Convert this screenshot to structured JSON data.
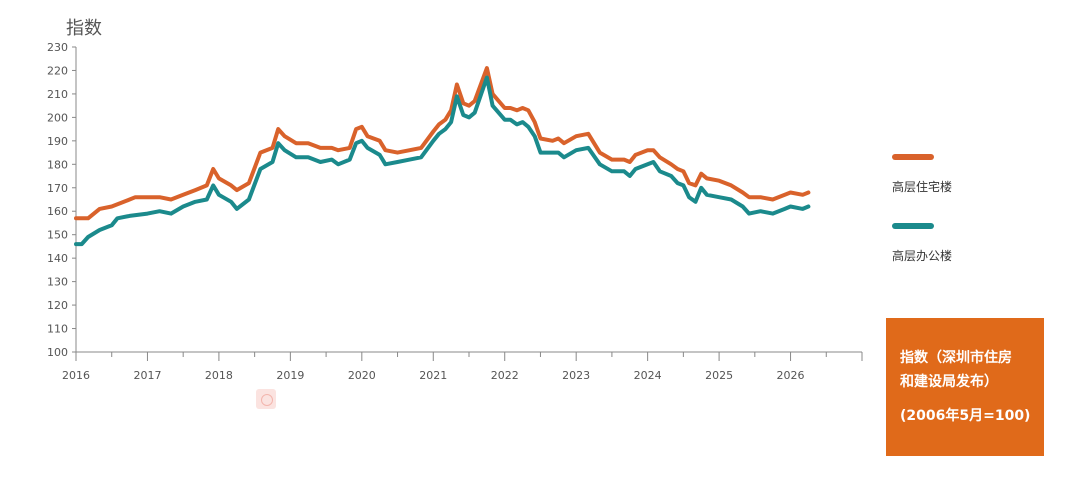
{
  "chart_data": {
    "type": "line",
    "ylabel": "指数",
    "ylim": [
      100,
      230
    ],
    "yticks": [
      100,
      110,
      120,
      130,
      140,
      150,
      160,
      170,
      180,
      190,
      200,
      210,
      220,
      230
    ],
    "xlim": [
      2016,
      2027
    ],
    "xticks": [
      "2016",
      "2017",
      "2018",
      "2019",
      "2020",
      "2021",
      "2022",
      "2023",
      "2024",
      "2025",
      "2026"
    ],
    "grid": false,
    "legend_position": "right",
    "series": [
      {
        "name": "高层住宅楼",
        "color": "#d9622b",
        "points": [
          [
            2016.0,
            157
          ],
          [
            2016.17,
            157
          ],
          [
            2016.33,
            161
          ],
          [
            2016.5,
            162
          ],
          [
            2016.67,
            164
          ],
          [
            2016.83,
            166
          ],
          [
            2017.0,
            166
          ],
          [
            2017.17,
            166
          ],
          [
            2017.33,
            165
          ],
          [
            2017.5,
            167
          ],
          [
            2017.67,
            169
          ],
          [
            2017.83,
            171
          ],
          [
            2017.92,
            178
          ],
          [
            2018.0,
            174
          ],
          [
            2018.17,
            171
          ],
          [
            2018.25,
            169
          ],
          [
            2018.42,
            172
          ],
          [
            2018.58,
            185
          ],
          [
            2018.75,
            187
          ],
          [
            2018.83,
            195
          ],
          [
            2018.92,
            192
          ],
          [
            2019.08,
            189
          ],
          [
            2019.25,
            189
          ],
          [
            2019.42,
            187
          ],
          [
            2019.58,
            187
          ],
          [
            2019.67,
            186
          ],
          [
            2019.83,
            187
          ],
          [
            2019.92,
            195
          ],
          [
            2020.0,
            196
          ],
          [
            2020.08,
            192
          ],
          [
            2020.25,
            190
          ],
          [
            2020.33,
            186
          ],
          [
            2020.5,
            185
          ],
          [
            2020.67,
            186
          ],
          [
            2020.83,
            187
          ],
          [
            2021.0,
            194
          ],
          [
            2021.08,
            197
          ],
          [
            2021.17,
            199
          ],
          [
            2021.25,
            203
          ],
          [
            2021.33,
            214
          ],
          [
            2021.42,
            206
          ],
          [
            2021.5,
            205
          ],
          [
            2021.58,
            207
          ],
          [
            2021.75,
            221
          ],
          [
            2021.83,
            210
          ],
          [
            2022.0,
            204
          ],
          [
            2022.08,
            204
          ],
          [
            2022.17,
            203
          ],
          [
            2022.25,
            204
          ],
          [
            2022.33,
            203
          ],
          [
            2022.42,
            198
          ],
          [
            2022.5,
            191
          ],
          [
            2022.67,
            190
          ],
          [
            2022.75,
            191
          ],
          [
            2022.83,
            189
          ],
          [
            2023.0,
            192
          ],
          [
            2023.17,
            193
          ],
          [
            2023.33,
            185
          ],
          [
            2023.5,
            182
          ],
          [
            2023.67,
            182
          ],
          [
            2023.75,
            181
          ],
          [
            2023.83,
            184
          ],
          [
            2024.0,
            186
          ],
          [
            2024.08,
            186
          ],
          [
            2024.17,
            183
          ],
          [
            2024.33,
            180
          ],
          [
            2024.42,
            178
          ],
          [
            2024.5,
            177
          ],
          [
            2024.58,
            172
          ],
          [
            2024.67,
            171
          ],
          [
            2024.75,
            176
          ],
          [
            2024.83,
            174
          ],
          [
            2025.0,
            173
          ],
          [
            2025.17,
            171
          ],
          [
            2025.33,
            168
          ],
          [
            2025.42,
            166
          ],
          [
            2025.58,
            166
          ],
          [
            2025.75,
            165
          ],
          [
            2025.92,
            167
          ],
          [
            2026.0,
            168
          ],
          [
            2026.17,
            167
          ],
          [
            2026.25,
            168
          ]
        ]
      },
      {
        "name": "高层办公楼",
        "color": "#1b8a8c",
        "points": [
          [
            2016.0,
            146
          ],
          [
            2016.08,
            146
          ],
          [
            2016.17,
            149
          ],
          [
            2016.33,
            152
          ],
          [
            2016.5,
            154
          ],
          [
            2016.58,
            157
          ],
          [
            2016.75,
            158
          ],
          [
            2017.0,
            159
          ],
          [
            2017.17,
            160
          ],
          [
            2017.33,
            159
          ],
          [
            2017.5,
            162
          ],
          [
            2017.67,
            164
          ],
          [
            2017.83,
            165
          ],
          [
            2017.92,
            171
          ],
          [
            2018.0,
            167
          ],
          [
            2018.17,
            164
          ],
          [
            2018.25,
            161
          ],
          [
            2018.42,
            165
          ],
          [
            2018.58,
            178
          ],
          [
            2018.75,
            181
          ],
          [
            2018.83,
            189
          ],
          [
            2018.92,
            186
          ],
          [
            2019.08,
            183
          ],
          [
            2019.25,
            183
          ],
          [
            2019.42,
            181
          ],
          [
            2019.58,
            182
          ],
          [
            2019.67,
            180
          ],
          [
            2019.83,
            182
          ],
          [
            2019.92,
            189
          ],
          [
            2020.0,
            190
          ],
          [
            2020.08,
            187
          ],
          [
            2020.25,
            184
          ],
          [
            2020.33,
            180
          ],
          [
            2020.5,
            181
          ],
          [
            2020.67,
            182
          ],
          [
            2020.83,
            183
          ],
          [
            2021.0,
            190
          ],
          [
            2021.08,
            193
          ],
          [
            2021.17,
            195
          ],
          [
            2021.25,
            198
          ],
          [
            2021.33,
            209
          ],
          [
            2021.42,
            201
          ],
          [
            2021.5,
            200
          ],
          [
            2021.58,
            202
          ],
          [
            2021.75,
            217
          ],
          [
            2021.83,
            205
          ],
          [
            2022.0,
            199
          ],
          [
            2022.08,
            199
          ],
          [
            2022.17,
            197
          ],
          [
            2022.25,
            198
          ],
          [
            2022.33,
            196
          ],
          [
            2022.42,
            192
          ],
          [
            2022.5,
            185
          ],
          [
            2022.67,
            185
          ],
          [
            2022.75,
            185
          ],
          [
            2022.83,
            183
          ],
          [
            2023.0,
            186
          ],
          [
            2023.17,
            187
          ],
          [
            2023.33,
            180
          ],
          [
            2023.5,
            177
          ],
          [
            2023.67,
            177
          ],
          [
            2023.75,
            175
          ],
          [
            2023.83,
            178
          ],
          [
            2024.0,
            180
          ],
          [
            2024.08,
            181
          ],
          [
            2024.17,
            177
          ],
          [
            2024.33,
            175
          ],
          [
            2024.42,
            172
          ],
          [
            2024.5,
            171
          ],
          [
            2024.58,
            166
          ],
          [
            2024.67,
            164
          ],
          [
            2024.75,
            170
          ],
          [
            2024.83,
            167
          ],
          [
            2025.0,
            166
          ],
          [
            2025.17,
            165
          ],
          [
            2025.33,
            162
          ],
          [
            2025.42,
            159
          ],
          [
            2025.58,
            160
          ],
          [
            2025.75,
            159
          ],
          [
            2025.92,
            161
          ],
          [
            2026.0,
            162
          ],
          [
            2026.17,
            161
          ],
          [
            2026.25,
            162
          ]
        ]
      }
    ]
  },
  "legend": {
    "items": [
      {
        "label": "高层住宅楼",
        "color": "#d9622b"
      },
      {
        "label": "高层办公楼",
        "color": "#1b8a8c"
      }
    ]
  },
  "note": {
    "line1": "指数（深圳市住房",
    "line2": "和建设局发布）",
    "line3": "(2006年5月=100)",
    "background": "#e06a1a"
  }
}
